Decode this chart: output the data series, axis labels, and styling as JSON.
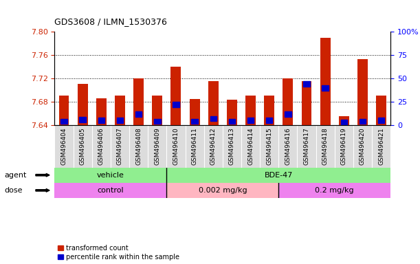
{
  "title": "GDS3608 / ILMN_1530376",
  "samples": [
    "GSM496404",
    "GSM496405",
    "GSM496406",
    "GSM496407",
    "GSM496408",
    "GSM496409",
    "GSM496410",
    "GSM496411",
    "GSM496412",
    "GSM496413",
    "GSM496414",
    "GSM496415",
    "GSM496416",
    "GSM496417",
    "GSM496418",
    "GSM496419",
    "GSM496420",
    "GSM496421"
  ],
  "red_values": [
    7.69,
    7.71,
    7.686,
    7.69,
    7.72,
    7.69,
    7.74,
    7.685,
    7.715,
    7.683,
    7.69,
    7.69,
    7.72,
    7.715,
    7.79,
    7.655,
    7.753,
    7.69
  ],
  "blue_percentiles": [
    2,
    4,
    3,
    3,
    10,
    2,
    20,
    2,
    5,
    2,
    3,
    3,
    10,
    42,
    38,
    1,
    2,
    3
  ],
  "baseline": 7.64,
  "ylim_left": [
    7.64,
    7.8
  ],
  "ylim_right": [
    0,
    100
  ],
  "yticks_left": [
    7.64,
    7.68,
    7.72,
    7.76,
    7.8
  ],
  "yticks_right": [
    0,
    25,
    50,
    75,
    100
  ],
  "ytick_right_labels": [
    "0",
    "25",
    "50",
    "75",
    "100%"
  ],
  "bar_color": "#CC2200",
  "blue_color": "#0000CC",
  "left_label_color": "#CC2200",
  "right_label_color": "#0000FF",
  "bg_color": "#DCDCDC",
  "plot_bg": "#FFFFFF",
  "agent_label_color": "#000000",
  "dose_label_color": "#000000",
  "vehicle_color": "#90EE90",
  "bde_color": "#90EE90",
  "control_color": "#EE82EE",
  "dose1_color": "#FFB6C1",
  "dose2_color": "#EE82EE",
  "legend_items": [
    {
      "label": "transformed count",
      "color": "#CC2200"
    },
    {
      "label": "percentile rank within the sample",
      "color": "#0000CC"
    }
  ]
}
